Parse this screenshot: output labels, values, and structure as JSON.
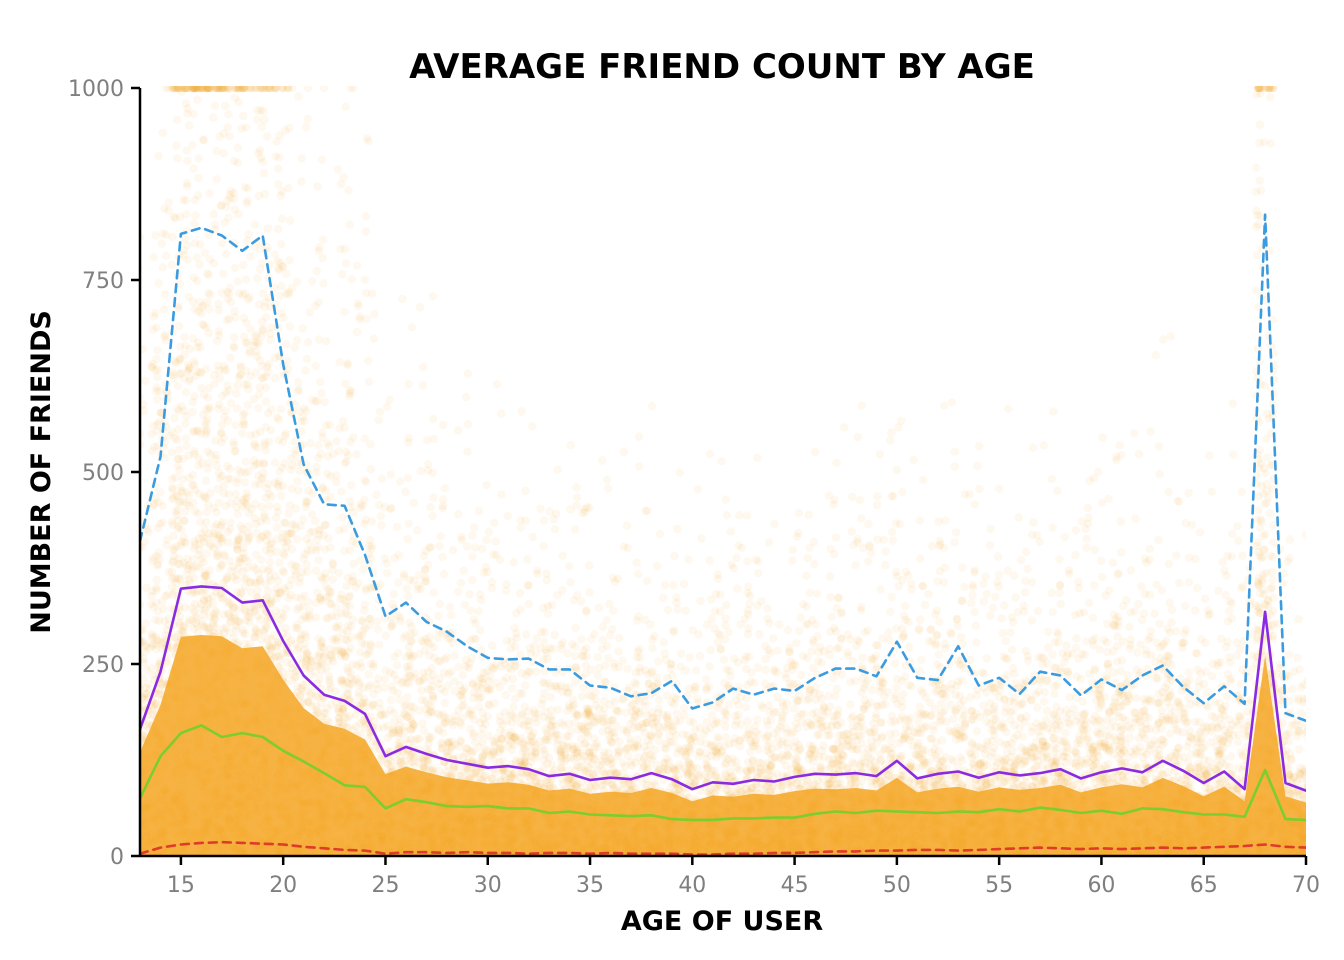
{
  "chart_data": {
    "type": "scatter",
    "title": "AVERAGE FRIEND COUNT BY AGE",
    "xlabel": "AGE OF USER",
    "ylabel": "NUMBER OF FRIENDS",
    "xlim": [
      13,
      70
    ],
    "ylim": [
      0,
      1000
    ],
    "x_ticks": [
      15,
      20,
      25,
      30,
      35,
      40,
      45,
      50,
      55,
      60,
      65,
      70
    ],
    "y_ticks": [
      0,
      250,
      500,
      750,
      1000
    ],
    "grid": false,
    "legend": "none",
    "scatter_color": "#f5a623",
    "scatter_alpha": 0.08,
    "ages": [
      13,
      14,
      15,
      16,
      17,
      18,
      19,
      20,
      21,
      22,
      23,
      24,
      25,
      26,
      27,
      28,
      29,
      30,
      31,
      32,
      33,
      34,
      35,
      36,
      37,
      38,
      39,
      40,
      41,
      42,
      43,
      44,
      45,
      46,
      47,
      48,
      49,
      50,
      51,
      52,
      53,
      54,
      55,
      56,
      57,
      58,
      59,
      60,
      61,
      62,
      63,
      64,
      65,
      66,
      67,
      68,
      69,
      70
    ],
    "series": [
      {
        "color": "#3a9be0",
        "dash": "dashed",
        "values": [
          410,
          520,
          810,
          818,
          808,
          788,
          808,
          640,
          510,
          458,
          456,
          392,
          312,
          330,
          305,
          292,
          273,
          258,
          256,
          257,
          243,
          243,
          222,
          219,
          208,
          212,
          228,
          192,
          200,
          218,
          210,
          218,
          215,
          232,
          244,
          244,
          234,
          279,
          232,
          229,
          273,
          222,
          232,
          211,
          240,
          235,
          209,
          230,
          216,
          235,
          248,
          220,
          199,
          221,
          198,
          835,
          186,
          176
        ]
      },
      {
        "color": "#8a2be2",
        "dash": "solid",
        "values": [
          165,
          240,
          348,
          351,
          349,
          330,
          333,
          280,
          235,
          210,
          202,
          185,
          130,
          142,
          133,
          125,
          120,
          115,
          117,
          113,
          104,
          107,
          99,
          102,
          100,
          108,
          100,
          87,
          96,
          94,
          99,
          97,
          103,
          107,
          106,
          108,
          104,
          124,
          101,
          107,
          110,
          102,
          109,
          105,
          108,
          113,
          101,
          109,
          114,
          109,
          124,
          111,
          95,
          110,
          87,
          318,
          95,
          85
        ]
      },
      {
        "color": "#7dcd2f",
        "dash": "solid",
        "values": [
          75,
          130,
          160,
          170,
          155,
          160,
          155,
          137,
          123,
          108,
          92,
          90,
          62,
          74,
          70,
          65,
          64,
          65,
          62,
          62,
          56,
          58,
          54,
          53,
          52,
          53,
          48,
          47,
          47,
          49,
          49,
          50,
          50,
          55,
          58,
          56,
          59,
          58,
          57,
          56,
          58,
          57,
          61,
          58,
          63,
          60,
          56,
          59,
          55,
          62,
          61,
          57,
          54,
          54,
          51,
          112,
          48,
          47
        ]
      },
      {
        "color": "#e03a2a",
        "dash": "dashed",
        "values": [
          3,
          11,
          15,
          17,
          18,
          17,
          16,
          15,
          12,
          10,
          8,
          7,
          3,
          5,
          5,
          4,
          5,
          4,
          4,
          3,
          4,
          4,
          3,
          4,
          3,
          3,
          3,
          2,
          2,
          3,
          3,
          4,
          4,
          5,
          6,
          6,
          7,
          7,
          8,
          8,
          7,
          8,
          9,
          10,
          11,
          10,
          9,
          10,
          9,
          10,
          11,
          10,
          11,
          12,
          13,
          15,
          12,
          11
        ]
      }
    ]
  }
}
